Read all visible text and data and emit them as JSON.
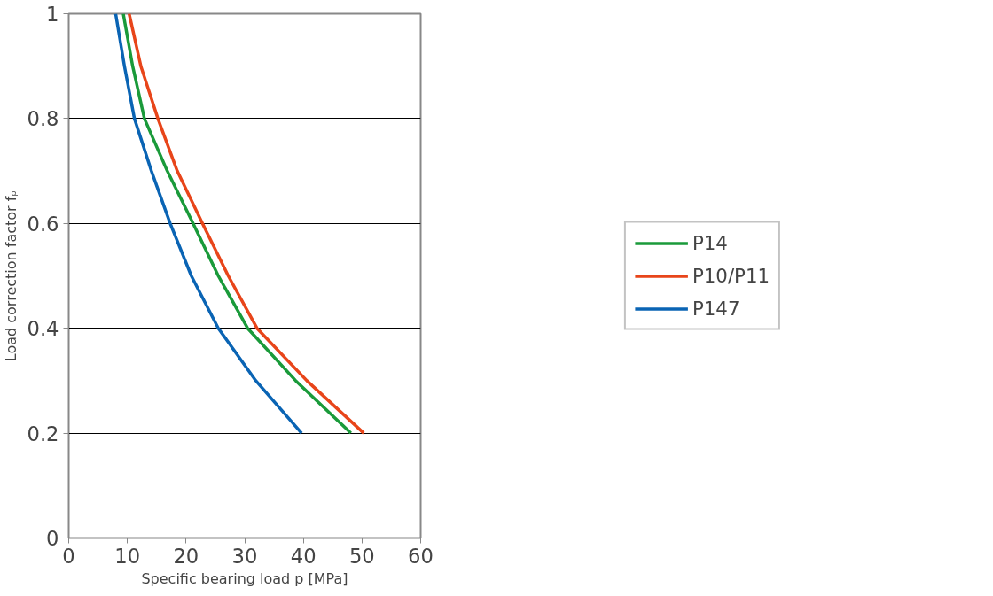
{
  "chart_data": {
    "type": "line",
    "xlabel": "Specific bearing load p [MPa]",
    "ylabel": "Load correction factor fₚ",
    "xlim": [
      0,
      60
    ],
    "xticks": [
      0,
      10,
      20,
      30,
      40,
      50,
      60
    ],
    "ylim": [
      0,
      1
    ],
    "yticks": [
      0,
      0.2,
      0.4,
      0.6,
      0.8,
      1
    ],
    "grid": "y",
    "legend": "right",
    "line_style": "solid",
    "marker": "none",
    "series": [
      {
        "name": "P14",
        "color": "#1a9a3a",
        "x": [
          9.3,
          10.9,
          12.9,
          16.8,
          21.2,
          25.5,
          30.5,
          38.7,
          48.1
        ],
        "values": [
          1,
          0.9,
          0.8,
          0.7,
          0.6,
          0.5,
          0.4,
          0.3,
          0.2
        ]
      },
      {
        "name": "P10/P11",
        "color": "#e8451a",
        "x": [
          10.3,
          12.3,
          15.2,
          18.5,
          22.8,
          27.2,
          32.1,
          40.6,
          50.3
        ],
        "values": [
          1,
          0.9,
          0.8,
          0.7,
          0.6,
          0.5,
          0.4,
          0.3,
          0.2
        ]
      },
      {
        "name": "P147",
        "color": "#0a64b4",
        "x": [
          8.0,
          9.5,
          11.2,
          14.1,
          17.3,
          20.9,
          25.5,
          31.9,
          39.7
        ],
        "values": [
          1,
          0.9,
          0.8,
          0.7,
          0.6,
          0.5,
          0.4,
          0.3,
          0.2
        ]
      }
    ]
  }
}
